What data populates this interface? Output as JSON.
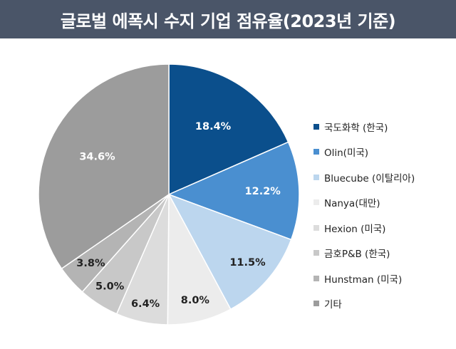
{
  "title": "글로벌 에폭시 수지 기업 점유율(2023년 기준)",
  "colors": {
    "title_bar_bg": "#4a5568",
    "slice_edge": "#ffffff"
  },
  "chart_data": {
    "type": "pie",
    "title": "글로벌 에폭시 수지 기업 점유율(2023년 기준)",
    "start": "12 o'clock, clockwise",
    "legend_position": "right",
    "slices": [
      {
        "name": "국도화학 (한국)",
        "value": 18.4,
        "label": "18.4%",
        "color": "#0b4f8c",
        "label_color": "#ffffff"
      },
      {
        "name": "Olin(미국)",
        "value": 12.2,
        "label": "12.2%",
        "color": "#4a8fd0",
        "label_color": "#ffffff"
      },
      {
        "name": "Bluecube (이탈리아)",
        "value": 11.5,
        "label": "11.5%",
        "color": "#bcd6ee",
        "label_color": "#222222"
      },
      {
        "name": "Nanya(대만)",
        "value": 8.0,
        "label": "8.0%",
        "color": "#ececec",
        "label_color": "#222222"
      },
      {
        "name": "Hexion (미국)",
        "value": 6.4,
        "label": "6.4%",
        "color": "#dcdcdc",
        "label_color": "#222222"
      },
      {
        "name": "금호P&B (한국)",
        "value": 5.0,
        "label": "5.0%",
        "color": "#c8c8c8",
        "label_color": "#222222"
      },
      {
        "name": "Hunstman (미국)",
        "value": 3.8,
        "label": "3.8%",
        "color": "#b4b4b4",
        "label_color": "#222222"
      },
      {
        "name": "기타",
        "value": 34.6,
        "label": "34.6%",
        "color": "#9c9c9c",
        "label_color": "#ffffff"
      }
    ]
  }
}
